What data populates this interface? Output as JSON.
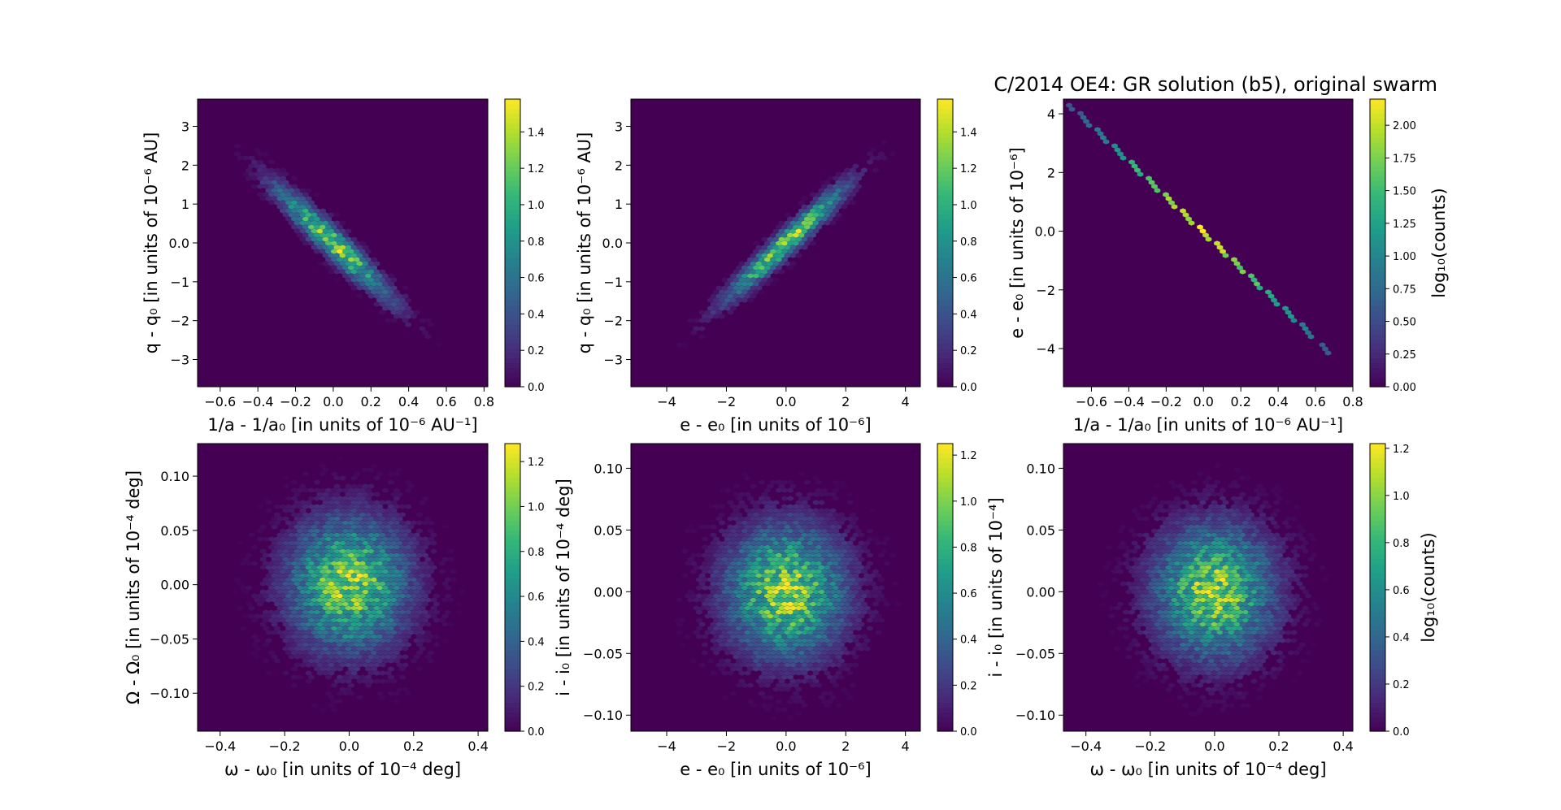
{
  "figure": {
    "title": "C/2014 OE4: GR solution (b5), original swarm"
  },
  "chart_data": [
    {
      "type": "heatmap",
      "xlabel": "1/a - 1/a₀ [in units of 10⁻⁶ AU⁻¹]",
      "ylabel": "q - q₀ [in units of 10⁻⁶ AU]",
      "xlim": [
        -0.72,
        0.82
      ],
      "ylim": [
        -3.7,
        3.7
      ],
      "xticks": [
        -0.6,
        -0.4,
        -0.2,
        0.0,
        0.2,
        0.4,
        0.6,
        0.8
      ],
      "yticks": [
        -3,
        -2,
        -1,
        0,
        1,
        2,
        3
      ],
      "cbar_range": [
        0,
        1.58
      ],
      "cbar_ticks": [
        0.0,
        0.2,
        0.4,
        0.6,
        0.8,
        1.0,
        1.2,
        1.4
      ],
      "cbar_label": "",
      "distribution": {
        "center": [
          0.0,
          0.0
        ],
        "x_sigma": 0.2,
        "y_sigma": 0.95,
        "correlation": -0.95
      }
    },
    {
      "type": "heatmap",
      "xlabel": "e - e₀ [in units of 10⁻⁶]",
      "ylabel": "q - q₀ [in units of 10⁻⁶ AU]",
      "xlim": [
        -5.2,
        4.5
      ],
      "ylim": [
        -3.7,
        3.7
      ],
      "xticks": [
        -4,
        -2,
        0,
        2,
        4
      ],
      "yticks": [
        -3,
        -2,
        -1,
        0,
        1,
        2,
        3
      ],
      "cbar_range": [
        0,
        1.58
      ],
      "cbar_ticks": [
        0.0,
        0.2,
        0.4,
        0.6,
        0.8,
        1.0,
        1.2,
        1.4
      ],
      "cbar_label": "",
      "distribution": {
        "center": [
          0.0,
          0.0
        ],
        "x_sigma": 1.3,
        "y_sigma": 0.95,
        "correlation": 0.96
      }
    },
    {
      "type": "heatmap",
      "xlabel": "1/a - 1/a₀ [in units of 10⁻⁶ AU⁻¹]",
      "ylabel": "e - e₀ [in units of 10⁻⁶]",
      "xlim": [
        -0.75,
        0.8
      ],
      "ylim": [
        -5.3,
        4.5
      ],
      "xticks": [
        -0.6,
        -0.4,
        -0.2,
        0.0,
        0.2,
        0.4,
        0.6,
        0.8
      ],
      "yticks": [
        -4,
        -2,
        0,
        2,
        4
      ],
      "cbar_range": [
        0,
        2.2
      ],
      "cbar_ticks": [
        0.0,
        0.25,
        0.5,
        0.75,
        1.0,
        1.25,
        1.5,
        1.75,
        2.0
      ],
      "cbar_tick_labels": [
        "0.00",
        "0.25",
        "0.50",
        "0.75",
        "1.00",
        "1.25",
        "1.50",
        "1.75",
        "2.00"
      ],
      "cbar_label": "log₁₀(counts)",
      "distribution": {
        "line": [
          [
            -0.72,
            4.3
          ],
          [
            0.7,
            -4.3
          ]
        ]
      }
    },
    {
      "type": "heatmap",
      "xlabel": "ω - ω₀ [in units of 10⁻⁴ deg]",
      "ylabel": "Ω - Ω₀ [in units of 10⁻⁴ deg]",
      "xlim": [
        -0.47,
        0.43
      ],
      "ylim": [
        -0.135,
        0.13
      ],
      "xticks": [
        -0.4,
        -0.2,
        0.0,
        0.2,
        0.4
      ],
      "yticks": [
        -0.1,
        -0.05,
        0.0,
        0.05,
        0.1
      ],
      "ytick_labels": [
        "−0.10",
        "−0.05",
        "0.00",
        "0.05",
        "0.10"
      ],
      "cbar_range": [
        0,
        1.28
      ],
      "cbar_ticks": [
        0.0,
        0.2,
        0.4,
        0.6,
        0.8,
        1.0,
        1.2
      ],
      "cbar_label": "i - i₀ [in units of 10⁻⁴ deg]",
      "distribution": {
        "center": [
          0.0,
          0.0
        ],
        "x_sigma": 0.12,
        "y_sigma": 0.04,
        "correlation": 0.0
      }
    },
    {
      "type": "heatmap",
      "xlabel": "e - e₀ [in units of 10⁻⁶]",
      "ylabel": "",
      "xlim": [
        -5.2,
        4.5
      ],
      "ylim": [
        -0.113,
        0.12
      ],
      "xticks": [
        -4,
        -2,
        0,
        2,
        4
      ],
      "yticks": [
        -0.1,
        -0.05,
        0.0,
        0.05,
        0.1
      ],
      "ytick_labels": [
        "−0.10",
        "−0.05",
        "0.00",
        "0.05",
        "0.10"
      ],
      "cbar_range": [
        0,
        1.25
      ],
      "cbar_ticks": [
        0.0,
        0.2,
        0.4,
        0.6,
        0.8,
        1.0,
        1.2
      ],
      "cbar_label": "i - i₀ [in units of 10⁻⁴]",
      "distribution": {
        "center": [
          0.0,
          0.0
        ],
        "x_sigma": 1.3,
        "y_sigma": 0.035,
        "correlation": 0.0
      }
    },
    {
      "type": "heatmap",
      "xlabel": "ω - ω₀ [in units of 10⁻⁴ deg]",
      "ylabel": "",
      "xlim": [
        -0.47,
        0.43
      ],
      "ylim": [
        -0.113,
        0.12
      ],
      "xticks": [
        -0.4,
        -0.2,
        0.0,
        0.2,
        0.4
      ],
      "yticks": [
        -0.1,
        -0.05,
        0.0,
        0.05,
        0.1
      ],
      "ytick_labels": [
        "−0.10",
        "−0.05",
        "0.00",
        "0.05",
        "0.10"
      ],
      "cbar_range": [
        0,
        1.22
      ],
      "cbar_ticks": [
        0.0,
        0.2,
        0.4,
        0.6,
        0.8,
        1.0,
        1.2
      ],
      "cbar_label": "log₁₀(counts)",
      "distribution": {
        "center": [
          0.0,
          0.0
        ],
        "x_sigma": 0.12,
        "y_sigma": 0.035,
        "correlation": 0.0
      }
    }
  ]
}
